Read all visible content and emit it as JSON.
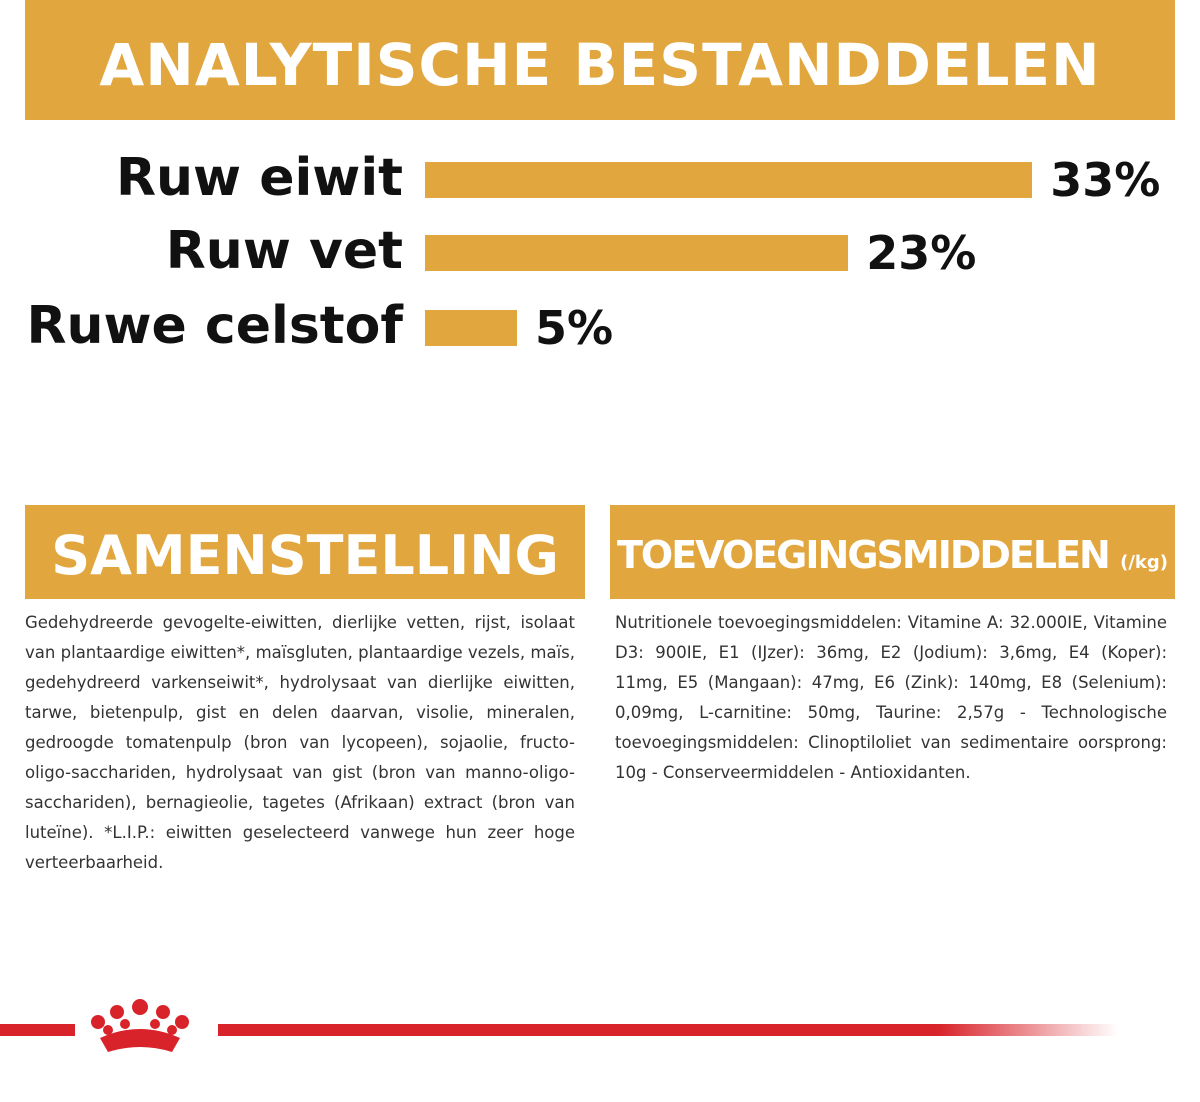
{
  "chart_data": {
    "type": "bar",
    "title": "ANALYTISCHE BESTANDDELEN",
    "categories": [
      "Ruw eiwit",
      "Ruw vet",
      "Ruwe celstof"
    ],
    "values": [
      33,
      23,
      5
    ],
    "value_labels": [
      "33%",
      "23%",
      "5%"
    ],
    "color": "#e2a63e"
  },
  "composition": {
    "title": "SAMENSTELLING",
    "text": "Gedehydreerde gevogelte-eiwitten, dierlijke vetten, rijst, isolaat van plantaardige eiwitten*, maïsgluten, plantaardige vezels, maïs, gedehydreerd varkenseiwit*, hydrolysaat van dierlijke eiwitten, tarwe, bietenpulp, gist en delen daarvan, visolie, mineralen, gedroogde tomatenpulp (bron van lycopeen), sojaolie, fructo-oligo-sacchariden, hydrolysaat van gist (bron van manno-oligo-sacchariden), bernagieolie, tagetes (Afrikaan) extract (bron van luteïne). *L.I.P.: eiwitten geselecteerd vanwege hun zeer hoge verteerbaarheid."
  },
  "additives": {
    "title": "TOEVOEGINGSMIDDELEN",
    "unit": "(/kg)",
    "text": "Nutritionele toevoegingsmiddelen: Vitamine A: 32.000IE, Vitamine D3: 900IE, E1 (IJzer): 36mg, E2 (Jodium): 3,6mg, E4 (Koper): 11mg, E5 (Mangaan): 47mg, E6 (Zink): 140mg, E8 (Selenium): 0,09mg, L-carnitine: 50mg, Taurine: 2,57g - Technologische toevoegingsmiddelen: Clinoptiloliet van sedimentaire oorsprong: 10g - Conserveermiddelen - Antioxidanten."
  }
}
